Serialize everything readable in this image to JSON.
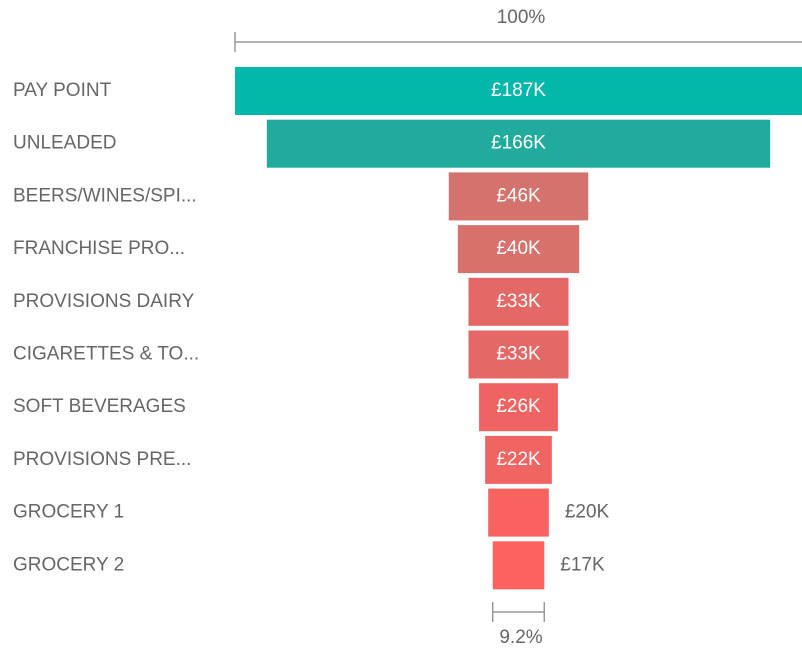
{
  "chart_data": {
    "type": "funnel",
    "categories": [
      "PAY POINT",
      "UNLEADED",
      "BEERS/WINES/SPI...",
      "FRANCHISE PRO...",
      "PROVISIONS DAIRY",
      "CIGARETTES & TO...",
      "SOFT BEVERAGES",
      "PROVISIONS PRE...",
      "GROCERY 1",
      "GROCERY 2"
    ],
    "values": [
      187,
      166,
      46,
      40,
      33,
      33,
      26,
      22,
      20,
      17
    ],
    "value_labels": [
      "£187K",
      "£166K",
      "£46K",
      "£40K",
      "£33K",
      "£33K",
      "£26K",
      "£22K",
      "£20K",
      "£17K"
    ],
    "colors": [
      "#01b8aa",
      "#20ab9c",
      "#d4726d",
      "#d8706b",
      "#e36866",
      "#e36866",
      "#ef6463",
      "#f06462",
      "#f86260",
      "#fd625e"
    ],
    "top_label": "100%",
    "bottom_label": "9.2%"
  }
}
